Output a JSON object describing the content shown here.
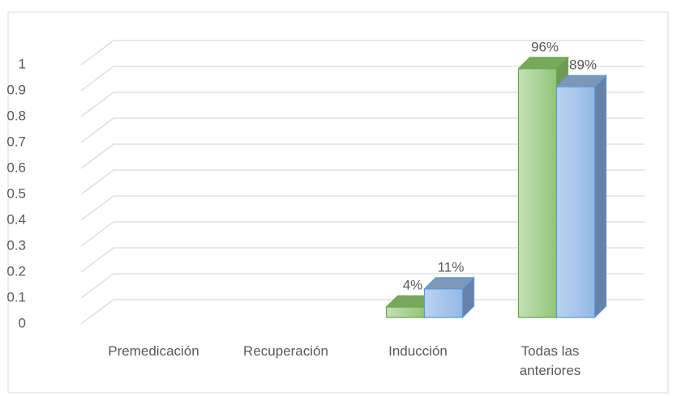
{
  "chart_data": {
    "type": "bar3d",
    "categories": [
      "Premedicación",
      "Recuperación",
      "Inducción",
      "Todas las anteriores"
    ],
    "series": [
      {
        "color": "#9ccc82",
        "values": [
          null,
          null,
          0.04,
          0.96
        ],
        "value_labels": [
          null,
          null,
          "4%",
          "96%"
        ]
      },
      {
        "color": "#a6c6ec",
        "values": [
          null,
          null,
          0.11,
          0.89
        ],
        "value_labels": [
          null,
          null,
          "11%",
          "89%"
        ]
      }
    ],
    "ylim": [
      0,
      1
    ],
    "yticks": [
      0,
      0.1,
      0.2,
      0.3,
      0.4,
      0.5,
      0.6,
      0.7,
      0.8,
      0.9,
      1
    ],
    "grid": true
  }
}
